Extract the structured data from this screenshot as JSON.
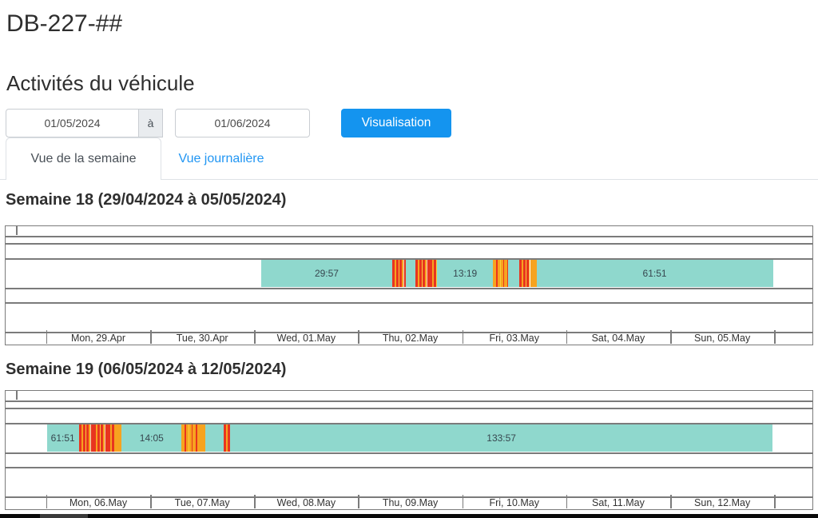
{
  "page": {
    "title": "DB-227-##",
    "section_title": "Activités du véhicule"
  },
  "controls": {
    "date_from": "01/05/2024",
    "separator": "à",
    "date_to": "01/06/2024",
    "visualize_button": "Visualisation"
  },
  "tabs": [
    {
      "label": "Vue de la semaine",
      "active": true
    },
    {
      "label": "Vue journalière",
      "active": false
    }
  ],
  "colors": {
    "accent_button": "#1494ef",
    "tab_link": "#2196f3",
    "rest_teal": "#8fd8cd",
    "activity_orange": "#f7a31f",
    "activity_red": "#e8351f",
    "activity_yellow": "#f8d03a",
    "grid": "#7b7b7b"
  },
  "chart_data": [
    {
      "type": "timeline",
      "title": "Semaine 18 (29/04/2024 à 05/05/2024)",
      "week_number": 18,
      "week_start": "29/04/2024",
      "week_end": "05/05/2024",
      "day_labels": [
        "Mon, 29.Apr",
        "Tue, 30.Apr",
        "Wed, 01.May",
        "Thu, 02.May",
        "Fri, 03.May",
        "Sat, 04.May",
        "Sun, 05.May"
      ],
      "tick_positions_pct": [
        5.04,
        17.93,
        30.82,
        43.71,
        56.6,
        69.49,
        82.38,
        95.27
      ],
      "segments": [
        {
          "s": 31.7,
          "e": 47.9,
          "kind": "teal",
          "label": "29:57"
        },
        {
          "s": 47.9,
          "e": 49.6,
          "kind": "stripes-red",
          "label": ""
        },
        {
          "s": 49.6,
          "e": 50.8,
          "kind": "teal",
          "label": ""
        },
        {
          "s": 50.8,
          "e": 53.5,
          "kind": "stripes-red",
          "label": ""
        },
        {
          "s": 53.5,
          "e": 60.4,
          "kind": "teal",
          "label": "13:19"
        },
        {
          "s": 60.4,
          "e": 62.3,
          "kind": "stripes-orange",
          "label": ""
        },
        {
          "s": 62.3,
          "e": 63.7,
          "kind": "teal",
          "label": ""
        },
        {
          "s": 63.7,
          "e": 65.0,
          "kind": "stripes-red",
          "label": ""
        },
        {
          "s": 65.0,
          "e": 65.8,
          "kind": "orange",
          "label": ""
        },
        {
          "s": 65.8,
          "e": 95.1,
          "kind": "teal",
          "label": "61:51"
        }
      ]
    },
    {
      "type": "timeline",
      "title": "Semaine 19 (06/05/2024 à 12/05/2024)",
      "week_number": 19,
      "week_start": "06/05/2024",
      "week_end": "12/05/2024",
      "day_labels": [
        "Mon, 06.May",
        "Tue, 07.May",
        "Wed, 08.May",
        "Thu, 09.May",
        "Fri, 10.May",
        "Sat, 11.May",
        "Sun, 12.May"
      ],
      "tick_positions_pct": [
        5.04,
        17.93,
        30.82,
        43.71,
        56.6,
        69.49,
        82.38,
        95.27
      ],
      "segments": [
        {
          "s": 5.1,
          "e": 9.1,
          "kind": "teal",
          "label": "61:51"
        },
        {
          "s": 9.1,
          "e": 13.5,
          "kind": "stripes-red",
          "label": ""
        },
        {
          "s": 13.5,
          "e": 14.4,
          "kind": "orange",
          "label": ""
        },
        {
          "s": 14.4,
          "e": 21.8,
          "kind": "teal",
          "label": "14:05"
        },
        {
          "s": 21.8,
          "e": 23.8,
          "kind": "stripes-orange",
          "label": ""
        },
        {
          "s": 23.8,
          "e": 24.8,
          "kind": "orange",
          "label": ""
        },
        {
          "s": 24.8,
          "e": 27.0,
          "kind": "teal",
          "label": ""
        },
        {
          "s": 27.0,
          "e": 27.8,
          "kind": "stripes-red",
          "label": ""
        },
        {
          "s": 27.8,
          "e": 95.1,
          "kind": "teal",
          "label": "133:57"
        }
      ]
    }
  ]
}
